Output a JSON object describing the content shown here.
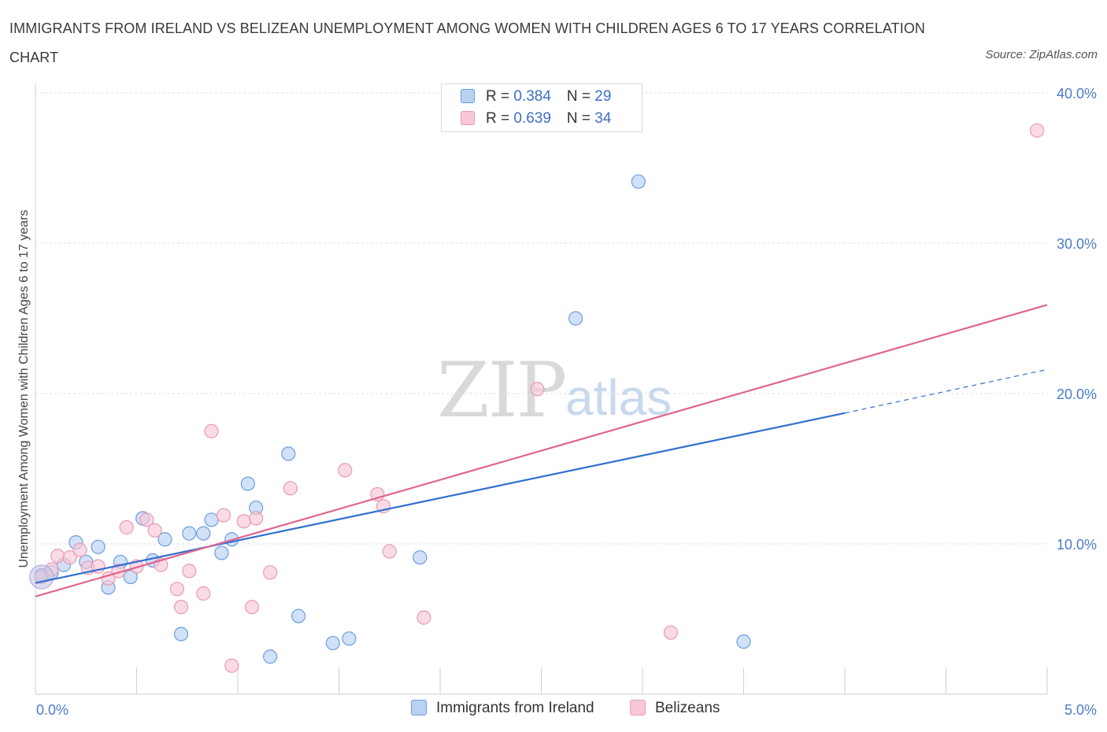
{
  "title": "IMMIGRANTS FROM IRELAND VS BELIZEAN UNEMPLOYMENT AMONG WOMEN WITH CHILDREN AGES 6 TO 17 YEARS CORRELATION CHART",
  "source": "Source: ZipAtlas.com",
  "watermark": {
    "zip": "ZIP",
    "atlas": "atlas"
  },
  "legend_top": {
    "rows": [
      {
        "r_label": "R = ",
        "r_value": "0.384",
        "n_label": "N = ",
        "n_value": "29"
      },
      {
        "r_label": "R = ",
        "r_value": "0.639",
        "n_label": "N = ",
        "n_value": "34"
      }
    ]
  },
  "chart_data": {
    "type": "scatter",
    "ylabel": "Unemployment Among Women with Children Ages 6 to 17 years",
    "xlabel": "",
    "xlim": [
      0,
      5
    ],
    "ylim": [
      0,
      40
    ],
    "x_ticks": [
      "0.0%",
      "5.0%"
    ],
    "y_ticks": [
      {
        "value": 10,
        "label": "10.0%"
      },
      {
        "value": 20,
        "label": "20.0%"
      },
      {
        "value": 30,
        "label": "30.0%"
      },
      {
        "value": 40,
        "label": "40.0%"
      }
    ],
    "grid": true,
    "legend_position": "bottom",
    "series": [
      {
        "name": "Immigrants from Ireland",
        "color": "#6b9de0",
        "fill": "#b9d1f3",
        "line_color": "#2f6fcf",
        "trend": {
          "x": [
            0,
            4.0
          ],
          "y": [
            7.4,
            18.7
          ],
          "dash_to": [
            5.0,
            21.6
          ]
        },
        "points": [
          {
            "x": 0.03,
            "y": 7.9
          },
          {
            "x": 0.08,
            "y": 8.1
          },
          {
            "x": 0.14,
            "y": 8.6
          },
          {
            "x": 0.2,
            "y": 10.1
          },
          {
            "x": 0.25,
            "y": 8.8
          },
          {
            "x": 0.31,
            "y": 9.8
          },
          {
            "x": 0.36,
            "y": 7.1
          },
          {
            "x": 0.42,
            "y": 8.8
          },
          {
            "x": 0.47,
            "y": 7.8
          },
          {
            "x": 0.53,
            "y": 11.7
          },
          {
            "x": 0.58,
            "y": 8.9
          },
          {
            "x": 0.64,
            "y": 10.3
          },
          {
            "x": 0.72,
            "y": 4.0
          },
          {
            "x": 0.76,
            "y": 10.7
          },
          {
            "x": 0.83,
            "y": 10.7
          },
          {
            "x": 0.87,
            "y": 11.6
          },
          {
            "x": 0.92,
            "y": 9.4
          },
          {
            "x": 0.97,
            "y": 10.3
          },
          {
            "x": 1.05,
            "y": 14.0
          },
          {
            "x": 1.09,
            "y": 12.4
          },
          {
            "x": 1.16,
            "y": 2.5
          },
          {
            "x": 1.25,
            "y": 16.0
          },
          {
            "x": 1.3,
            "y": 5.2
          },
          {
            "x": 1.47,
            "y": 3.4
          },
          {
            "x": 1.55,
            "y": 3.7
          },
          {
            "x": 1.9,
            "y": 9.1
          },
          {
            "x": 2.67,
            "y": 25.0
          },
          {
            "x": 2.98,
            "y": 34.1
          },
          {
            "x": 3.5,
            "y": 3.5
          }
        ]
      },
      {
        "name": "Belizeans",
        "color": "#e89ab3",
        "fill": "#f7c8d7",
        "line_color": "#e0668f",
        "trend": {
          "x": [
            0,
            5.0
          ],
          "y": [
            6.5,
            25.9
          ]
        },
        "points": [
          {
            "x": 0.03,
            "y": 7.8
          },
          {
            "x": 0.08,
            "y": 8.3
          },
          {
            "x": 0.11,
            "y": 9.2
          },
          {
            "x": 0.17,
            "y": 9.1
          },
          {
            "x": 0.22,
            "y": 9.6
          },
          {
            "x": 0.26,
            "y": 8.4
          },
          {
            "x": 0.31,
            "y": 8.5
          },
          {
            "x": 0.36,
            "y": 7.7
          },
          {
            "x": 0.41,
            "y": 8.2
          },
          {
            "x": 0.45,
            "y": 11.1
          },
          {
            "x": 0.5,
            "y": 8.5
          },
          {
            "x": 0.55,
            "y": 11.6
          },
          {
            "x": 0.59,
            "y": 10.9
          },
          {
            "x": 0.62,
            "y": 8.6
          },
          {
            "x": 0.7,
            "y": 7.0
          },
          {
            "x": 0.72,
            "y": 5.8
          },
          {
            "x": 0.76,
            "y": 8.2
          },
          {
            "x": 0.83,
            "y": 6.7
          },
          {
            "x": 0.87,
            "y": 17.5
          },
          {
            "x": 0.93,
            "y": 11.9
          },
          {
            "x": 0.97,
            "y": 1.9
          },
          {
            "x": 1.03,
            "y": 11.5
          },
          {
            "x": 1.07,
            "y": 5.8
          },
          {
            "x": 1.09,
            "y": 11.7
          },
          {
            "x": 1.16,
            "y": 8.1
          },
          {
            "x": 1.26,
            "y": 13.7
          },
          {
            "x": 1.53,
            "y": 14.9
          },
          {
            "x": 1.69,
            "y": 13.3
          },
          {
            "x": 1.72,
            "y": 12.5
          },
          {
            "x": 1.75,
            "y": 9.5
          },
          {
            "x": 1.92,
            "y": 5.1
          },
          {
            "x": 2.48,
            "y": 20.3
          },
          {
            "x": 3.14,
            "y": 4.1
          },
          {
            "x": 4.95,
            "y": 37.5
          }
        ]
      }
    ]
  }
}
